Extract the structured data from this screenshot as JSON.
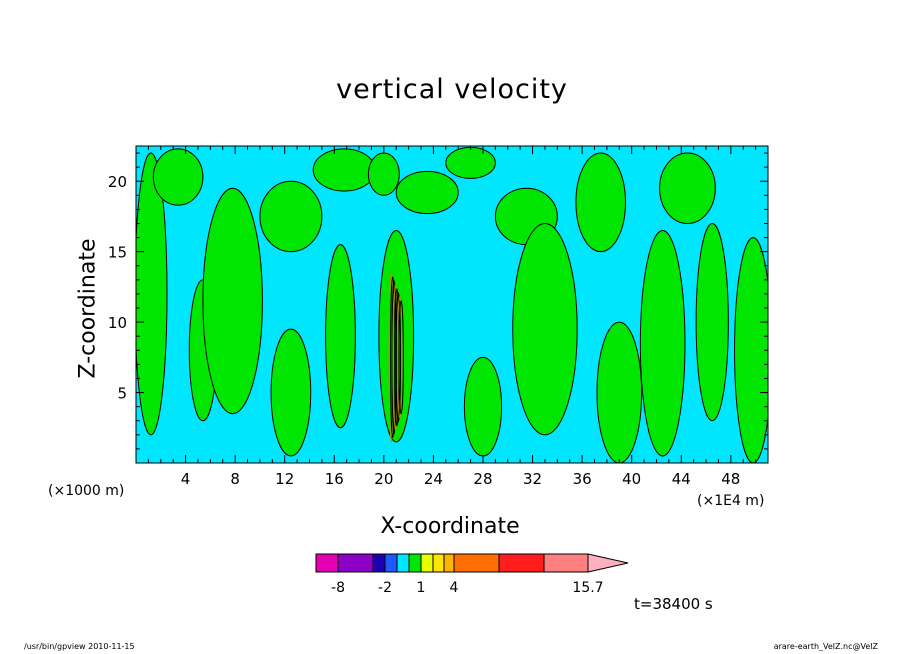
{
  "chart_data": {
    "type": "heatmap",
    "title": "vertical velocity",
    "xlabel": "X-coordinate",
    "ylabel": "Z-coordinate",
    "x_unit_left": "(×1000 m)",
    "x_unit_right": "(×1E4 m)",
    "x_ticks": [
      4,
      8,
      12,
      16,
      20,
      24,
      28,
      32,
      36,
      40,
      44,
      48
    ],
    "y_ticks": [
      5,
      10,
      15,
      20
    ],
    "xlim": [
      0,
      51
    ],
    "ylim": [
      0,
      22.5
    ],
    "grid": false,
    "time_label": "t=38400 s",
    "colorbar": {
      "tick_labels": [
        "-8",
        "-2",
        "1",
        "4",
        "15.7"
      ],
      "bins": [
        "#e600b4",
        "#8c00c8",
        "#1e00b4",
        "#1e5aff",
        "#00e6ff",
        "#00e600",
        "#e6ff00",
        "#ffe600",
        "#ffb400",
        "#ff6e00",
        "#ff1e1e",
        "#ff8080"
      ],
      "extend_color": "#ffb0c0"
    },
    "colors": {
      "negative_fill": "#00e6ff",
      "positive_fill": "#00e600"
    },
    "positive_regions": [
      {
        "x": 1.2,
        "z": 12,
        "w": 2.6,
        "h": 20
      },
      {
        "x": 3.4,
        "z": 20.3,
        "w": 4,
        "h": 4
      },
      {
        "x": 5.4,
        "z": 8,
        "w": 2.2,
        "h": 10
      },
      {
        "x": 7.8,
        "z": 11.5,
        "w": 4.8,
        "h": 16
      },
      {
        "x": 12.5,
        "z": 17.5,
        "w": 5,
        "h": 5
      },
      {
        "x": 12.5,
        "z": 5,
        "w": 3.2,
        "h": 9
      },
      {
        "x": 16.8,
        "z": 20.8,
        "w": 5,
        "h": 3
      },
      {
        "x": 16.5,
        "z": 9,
        "w": 2.4,
        "h": 13
      },
      {
        "x": 21,
        "z": 9,
        "w": 2.8,
        "h": 15
      },
      {
        "x": 20,
        "z": 20.5,
        "w": 2.5,
        "h": 3
      },
      {
        "x": 23.5,
        "z": 19.2,
        "w": 5,
        "h": 3
      },
      {
        "x": 27,
        "z": 21.3,
        "w": 4,
        "h": 2.2
      },
      {
        "x": 28,
        "z": 4,
        "w": 3,
        "h": 7
      },
      {
        "x": 31.5,
        "z": 17.5,
        "w": 5,
        "h": 4
      },
      {
        "x": 33,
        "z": 9.5,
        "w": 5.2,
        "h": 15
      },
      {
        "x": 37.5,
        "z": 18.5,
        "w": 4,
        "h": 7
      },
      {
        "x": 39,
        "z": 5,
        "w": 3.6,
        "h": 10
      },
      {
        "x": 42.5,
        "z": 8.5,
        "w": 3.6,
        "h": 16
      },
      {
        "x": 44.5,
        "z": 19.5,
        "w": 4.5,
        "h": 5
      },
      {
        "x": 46.5,
        "z": 10,
        "w": 2.6,
        "h": 14
      },
      {
        "x": 49.8,
        "z": 8,
        "w": 3,
        "h": 16
      }
    ]
  },
  "footer": {
    "left": "/usr/bin/gpview   2010-11-15",
    "right": "arare-earth_VelZ.nc@VelZ"
  }
}
